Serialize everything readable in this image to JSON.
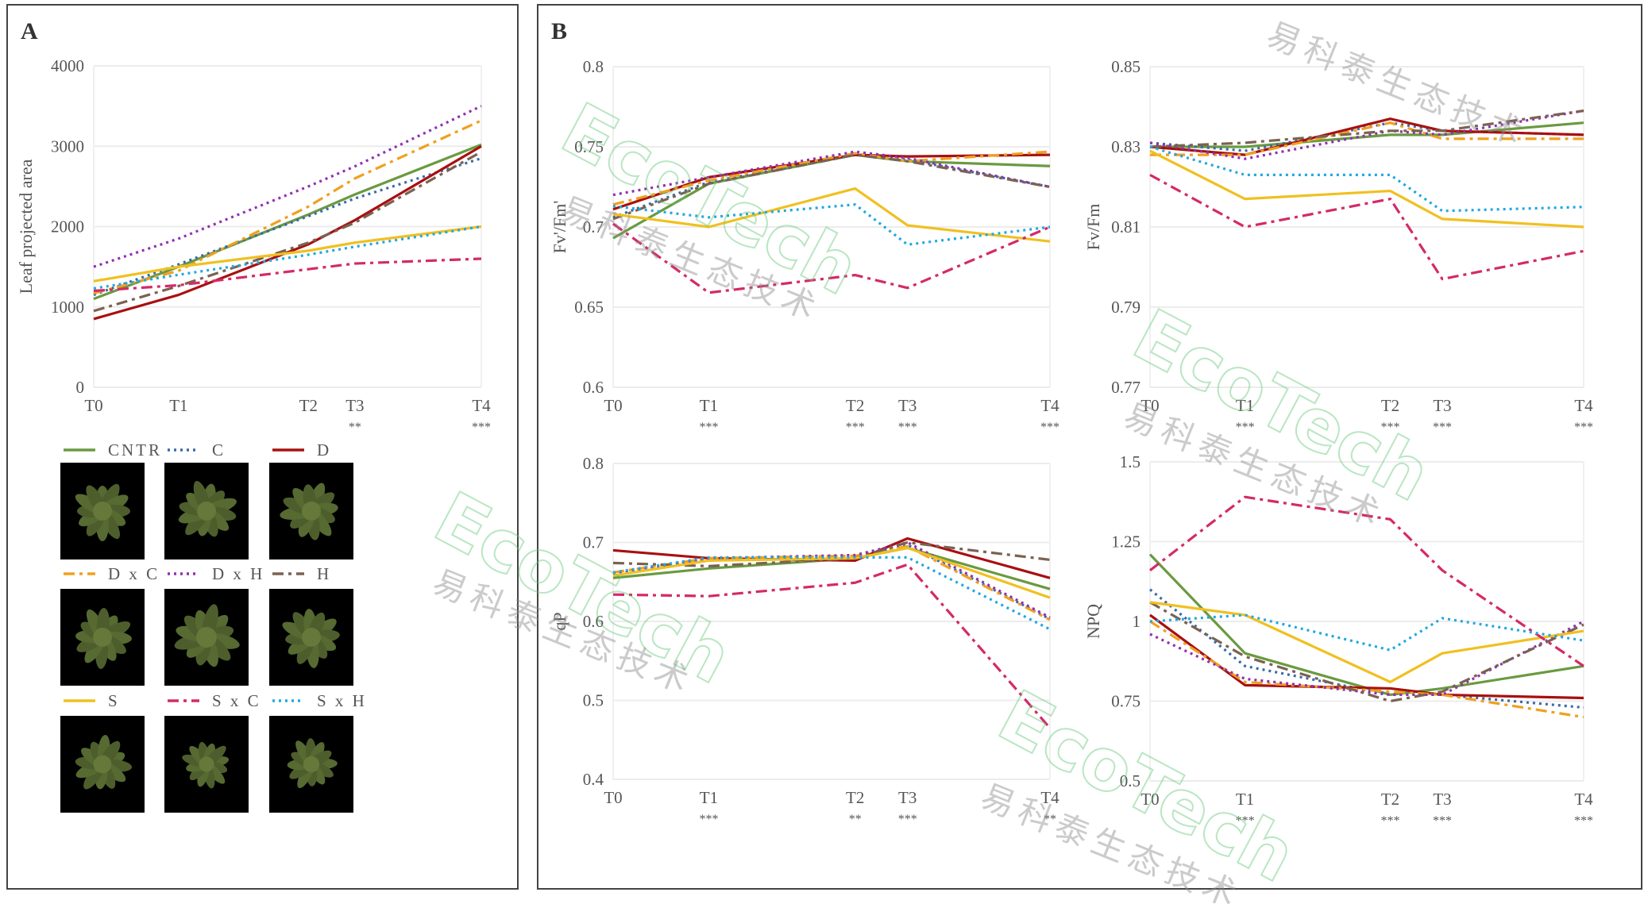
{
  "panels": {
    "a_label": "A",
    "b_label": "B"
  },
  "series_styles": [
    {
      "name": "CNTR",
      "color": "#6a9a40",
      "dash": "solid"
    },
    {
      "name": "C",
      "color": "#3a6aa8",
      "dash": "dotted"
    },
    {
      "name": "D",
      "color": "#a81010",
      "dash": "solid"
    },
    {
      "name": "D x C",
      "color": "#f0a020",
      "dash": "dash-dot"
    },
    {
      "name": "D x H",
      "color": "#9030b0",
      "dash": "dotted"
    },
    {
      "name": "H",
      "color": "#7a6252",
      "dash": "dash-dot"
    },
    {
      "name": "S",
      "color": "#f0c020",
      "dash": "solid"
    },
    {
      "name": "S x C",
      "color": "#d42a68",
      "dash": "dash-dot"
    },
    {
      "name": "S x H",
      "color": "#22a8e0",
      "dash": "dotted"
    }
  ],
  "watermark": {
    "brand": "EcoTech®",
    "cn": "易科泰生态技术"
  },
  "chart_data": [
    {
      "id": "A",
      "type": "line",
      "ylabel": "Leaf projected area",
      "categories": [
        "T0",
        "T1",
        "T2",
        "T3",
        "T4"
      ],
      "significance": [
        "",
        "",
        "",
        "**",
        "***"
      ],
      "ylim": [
        0,
        4000
      ],
      "yticks": [
        "0",
        "1000",
        "2000",
        "3000",
        "4000"
      ],
      "grid": true,
      "series": [
        {
          "name": "CNTR",
          "values": [
            1100,
            1500,
            2150,
            2400,
            3020
          ]
        },
        {
          "name": "C",
          "values": [
            1150,
            1530,
            2130,
            2350,
            2850
          ]
        },
        {
          "name": "D",
          "values": [
            850,
            1150,
            1780,
            2080,
            3000
          ]
        },
        {
          "name": "D x C",
          "values": [
            1170,
            1450,
            2250,
            2600,
            3320
          ]
        },
        {
          "name": "D x H",
          "values": [
            1500,
            1850,
            2500,
            2750,
            3500
          ]
        },
        {
          "name": "H",
          "values": [
            950,
            1260,
            1800,
            2050,
            2930
          ]
        },
        {
          "name": "S",
          "values": [
            1320,
            1500,
            1700,
            1800,
            2000
          ]
        },
        {
          "name": "S x C",
          "values": [
            1200,
            1270,
            1470,
            1540,
            1600
          ]
        },
        {
          "name": "S x H",
          "values": [
            1230,
            1400,
            1650,
            1750,
            2000
          ]
        }
      ]
    },
    {
      "id": "B1",
      "type": "line",
      "ylabel": "Fv'/Fm'",
      "categories": [
        "T0",
        "T1",
        "T2",
        "T3",
        "T4"
      ],
      "significance": [
        "",
        "***",
        "***",
        "***",
        "***"
      ],
      "ylim": [
        0.6,
        0.8
      ],
      "yticks": [
        "0.6",
        "0.65",
        "0.7",
        "0.75",
        "0.8"
      ],
      "grid": true,
      "series": [
        {
          "name": "CNTR",
          "values": [
            0.693,
            0.727,
            0.745,
            0.741,
            0.738
          ]
        },
        {
          "name": "C",
          "values": [
            0.706,
            0.728,
            0.745,
            0.742,
            0.725
          ]
        },
        {
          "name": "D",
          "values": [
            0.711,
            0.731,
            0.745,
            0.744,
            0.745
          ]
        },
        {
          "name": "D x C",
          "values": [
            0.714,
            0.729,
            0.746,
            0.741,
            0.747
          ]
        },
        {
          "name": "D x H",
          "values": [
            0.72,
            0.731,
            0.747,
            0.743,
            0.725
          ]
        },
        {
          "name": "H",
          "values": [
            0.705,
            0.727,
            0.745,
            0.741,
            0.725
          ]
        },
        {
          "name": "S",
          "values": [
            0.708,
            0.7,
            0.724,
            0.701,
            0.691
          ]
        },
        {
          "name": "S x C",
          "values": [
            0.702,
            0.659,
            0.67,
            0.662,
            0.7
          ]
        },
        {
          "name": "S x H",
          "values": [
            0.713,
            0.706,
            0.714,
            0.689,
            0.7
          ]
        }
      ]
    },
    {
      "id": "B2",
      "type": "line",
      "ylabel": "Fv/Fm",
      "categories": [
        "T0",
        "T1",
        "T2",
        "T3",
        "T4"
      ],
      "significance": [
        "",
        "***",
        "***",
        "***",
        "***"
      ],
      "ylim": [
        0.77,
        0.85
      ],
      "yticks": [
        "0.77",
        "0.79",
        "0.81",
        "0.83",
        "0.85"
      ],
      "grid": true,
      "series": [
        {
          "name": "CNTR",
          "values": [
            0.83,
            0.83,
            0.833,
            0.833,
            0.836
          ]
        },
        {
          "name": "C",
          "values": [
            0.831,
            0.829,
            0.836,
            0.834,
            0.833
          ]
        },
        {
          "name": "D",
          "values": [
            0.83,
            0.828,
            0.837,
            0.834,
            0.833
          ]
        },
        {
          "name": "D x C",
          "values": [
            0.828,
            0.828,
            0.836,
            0.832,
            0.832
          ]
        },
        {
          "name": "D x H",
          "values": [
            0.831,
            0.827,
            0.834,
            0.833,
            0.839
          ]
        },
        {
          "name": "H",
          "values": [
            0.83,
            0.831,
            0.834,
            0.834,
            0.839
          ]
        },
        {
          "name": "S",
          "values": [
            0.829,
            0.817,
            0.819,
            0.812,
            0.81
          ]
        },
        {
          "name": "S x C",
          "values": [
            0.823,
            0.81,
            0.817,
            0.797,
            0.804
          ]
        },
        {
          "name": "S x H",
          "values": [
            0.83,
            0.823,
            0.823,
            0.814,
            0.815
          ]
        }
      ]
    },
    {
      "id": "B3",
      "type": "line",
      "ylabel": "qP",
      "categories": [
        "T0",
        "T1",
        "T2",
        "T3",
        "T4"
      ],
      "significance": [
        "",
        "***",
        "**",
        "***",
        "**"
      ],
      "ylim": [
        0.4,
        0.8
      ],
      "yticks": [
        "0.4",
        "0.5",
        "0.6",
        "0.7",
        "0.8"
      ],
      "grid": true,
      "series": [
        {
          "name": "CNTR",
          "values": [
            0.655,
            0.667,
            0.68,
            0.693,
            0.641
          ]
        },
        {
          "name": "C",
          "values": [
            0.66,
            0.68,
            0.683,
            0.697,
            0.603
          ]
        },
        {
          "name": "D",
          "values": [
            0.69,
            0.68,
            0.677,
            0.705,
            0.655
          ]
        },
        {
          "name": "D x C",
          "values": [
            0.662,
            0.68,
            0.683,
            0.695,
            0.602
          ]
        },
        {
          "name": "D x H",
          "values": [
            0.66,
            0.68,
            0.684,
            0.7,
            0.605
          ]
        },
        {
          "name": "H",
          "values": [
            0.674,
            0.67,
            0.68,
            0.7,
            0.678
          ]
        },
        {
          "name": "S",
          "values": [
            0.658,
            0.677,
            0.68,
            0.693,
            0.63
          ]
        },
        {
          "name": "S x C",
          "values": [
            0.634,
            0.632,
            0.649,
            0.672,
            0.465
          ]
        },
        {
          "name": "S x H",
          "values": [
            0.662,
            0.681,
            0.681,
            0.681,
            0.59
          ]
        }
      ]
    },
    {
      "id": "B4",
      "type": "line",
      "ylabel": "NPQ",
      "categories": [
        "T0",
        "T1",
        "T2",
        "T3",
        "T4"
      ],
      "significance": [
        "",
        "***",
        "***",
        "***",
        "***"
      ],
      "ylim": [
        0.5,
        1.5
      ],
      "yticks": [
        "0.5",
        "0.75",
        "1",
        "1.25",
        "1.5"
      ],
      "grid": true,
      "series": [
        {
          "name": "CNTR",
          "values": [
            1.21,
            0.9,
            0.77,
            0.79,
            0.86
          ]
        },
        {
          "name": "C",
          "values": [
            1.1,
            0.86,
            0.77,
            0.77,
            0.73
          ]
        },
        {
          "name": "D",
          "values": [
            1.02,
            0.8,
            0.79,
            0.77,
            0.76
          ]
        },
        {
          "name": "D x C",
          "values": [
            1.0,
            0.81,
            0.78,
            0.77,
            0.7
          ]
        },
        {
          "name": "D x H",
          "values": [
            0.96,
            0.82,
            0.77,
            0.77,
            1.0
          ]
        },
        {
          "name": "H",
          "values": [
            1.06,
            0.89,
            0.75,
            0.78,
            0.99
          ]
        },
        {
          "name": "S",
          "values": [
            1.06,
            1.02,
            0.81,
            0.9,
            0.97
          ]
        },
        {
          "name": "S x C",
          "values": [
            1.16,
            1.39,
            1.32,
            1.16,
            0.86
          ]
        },
        {
          "name": "S x H",
          "values": [
            1.0,
            1.02,
            0.91,
            1.01,
            0.94
          ]
        }
      ]
    }
  ]
}
